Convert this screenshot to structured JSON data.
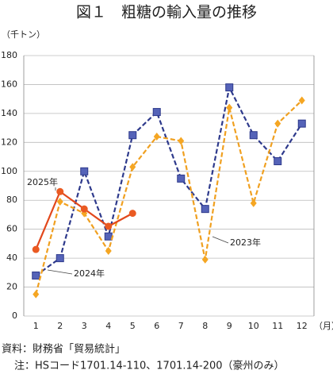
{
  "chart_data": {
    "type": "line",
    "title": "図１　粗糖の輸入量の推移",
    "y_label": "（千トン）",
    "x_label": "（月）",
    "categories": [
      "1",
      "2",
      "3",
      "4",
      "5",
      "6",
      "7",
      "8",
      "9",
      "10",
      "11",
      "12"
    ],
    "series": [
      {
        "name": "2023年",
        "color": "#2e3a8c",
        "marker_color": "#5563b8",
        "marker": "square",
        "dash": true,
        "values": [
          28,
          40,
          100,
          55,
          125,
          141,
          95,
          74,
          158,
          125,
          107,
          133
        ]
      },
      {
        "name": "2024年",
        "color": "#f0a020",
        "marker_color": "#f5a623",
        "marker": "diamond",
        "dash": true,
        "values": [
          15,
          79,
          71,
          45,
          103,
          124,
          121,
          39,
          144,
          78,
          133,
          149
        ]
      },
      {
        "name": "2025年",
        "color": "#e2481c",
        "marker_color": "#ea5a22",
        "marker": "circle",
        "dash": false,
        "values": [
          46,
          86,
          74,
          62,
          71,
          null,
          null,
          null,
          null,
          null,
          null,
          null
        ]
      }
    ],
    "ylim": [
      0,
      180
    ],
    "yticks": [
      0,
      20,
      40,
      60,
      80,
      100,
      120,
      140,
      160,
      180
    ],
    "grid": true,
    "source": "資料：財務省「貿易統計」",
    "note": "注：HSコード1701.14-110、1701.14-200（豪州のみ）"
  }
}
